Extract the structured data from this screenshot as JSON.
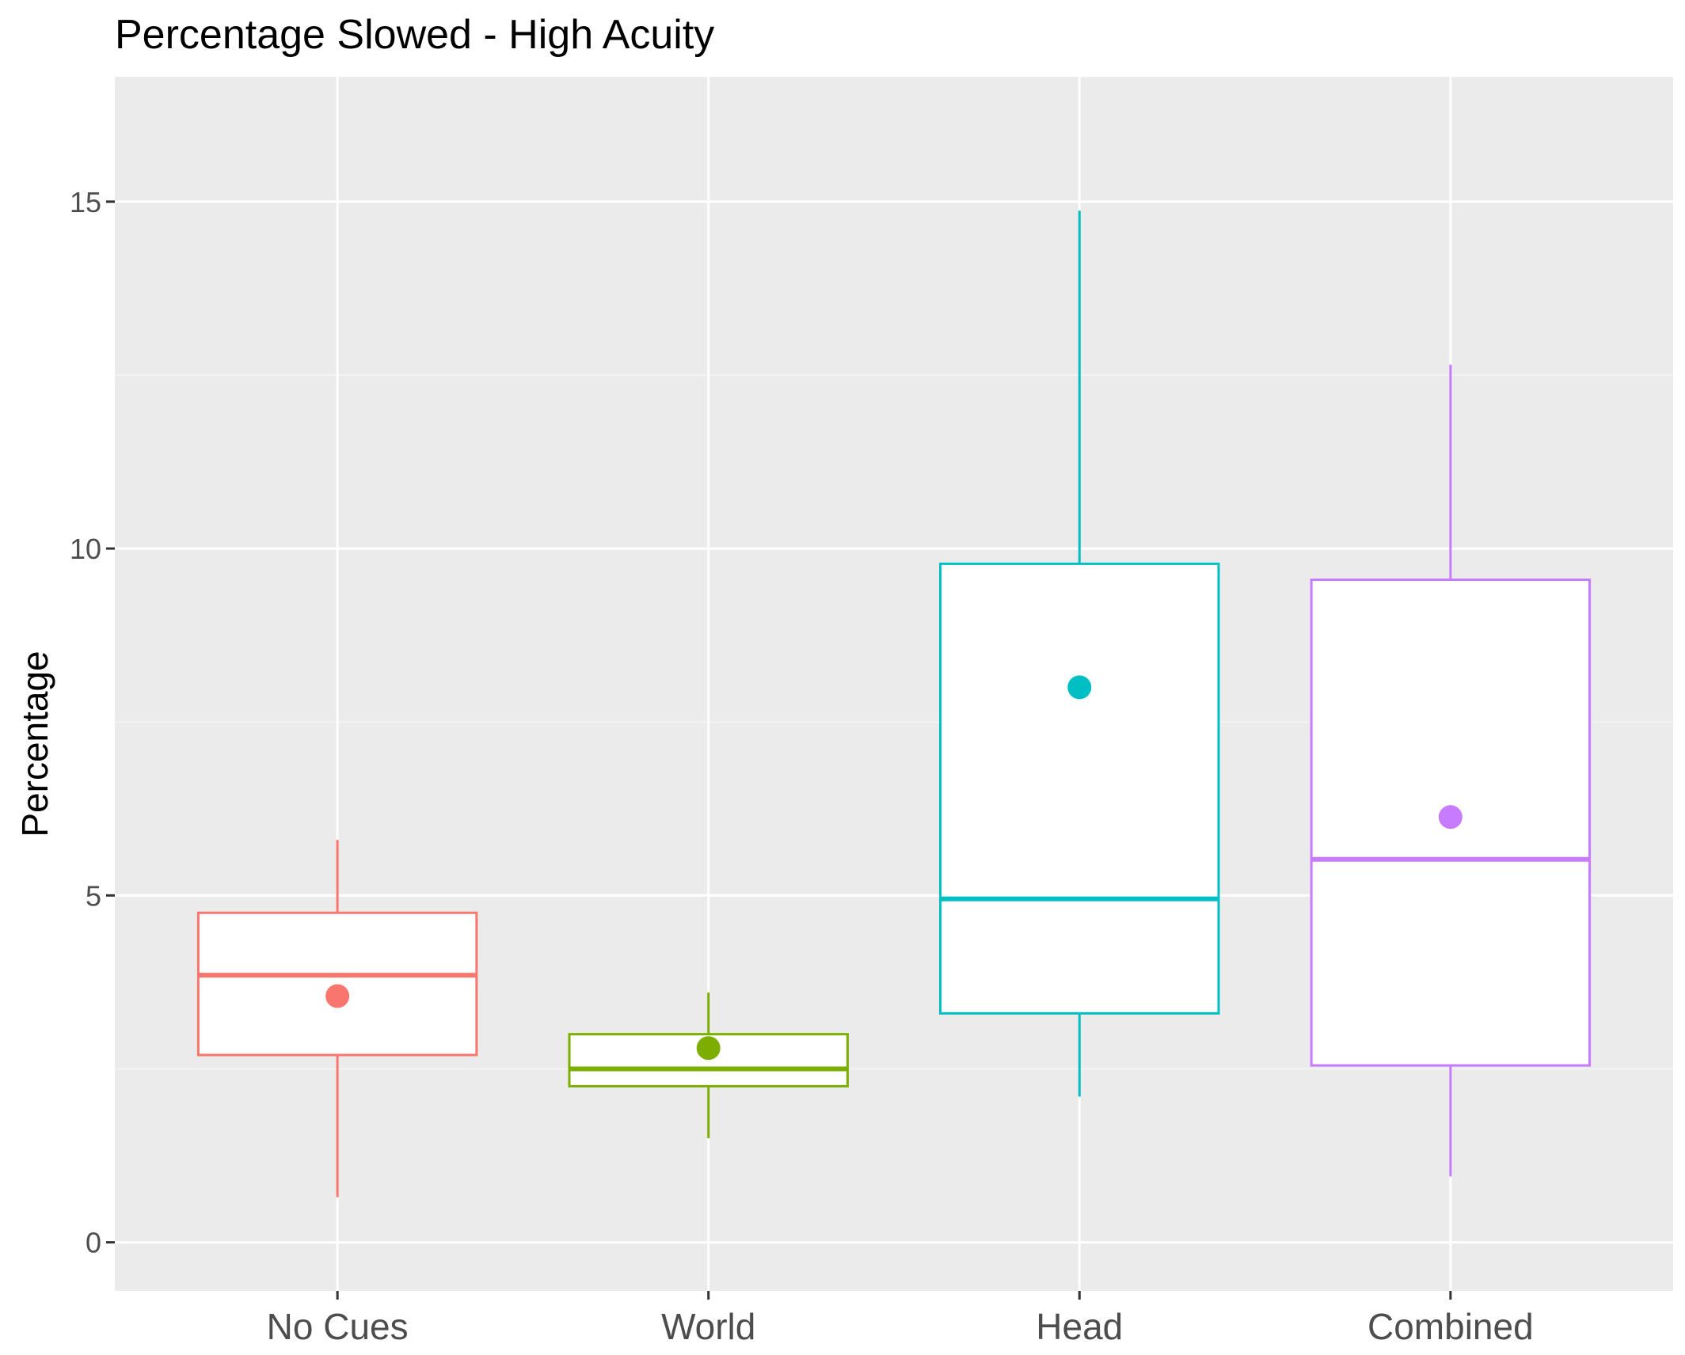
{
  "chart_data": {
    "type": "boxplot",
    "title": "Percentage Slowed - High Acuity",
    "xlabel": "",
    "ylabel": "Percentage",
    "categories": [
      "No Cues",
      "World",
      "Head",
      "Combined"
    ],
    "ylim": [
      -0.7,
      16.8
    ],
    "yticks": [
      0,
      5,
      10,
      15
    ],
    "grid": true,
    "legend": "none",
    "boxes": [
      {
        "category": "No Cues",
        "whisker_low": 0.65,
        "q1": 2.7,
        "median": 3.85,
        "q3": 4.75,
        "whisker_high": 5.8,
        "mean": 3.55,
        "color": "#F8766D"
      },
      {
        "category": "World",
        "whisker_low": 1.5,
        "q1": 2.25,
        "median": 2.5,
        "q3": 3.0,
        "whisker_high": 3.6,
        "mean": 2.8,
        "color": "#7CAE00"
      },
      {
        "category": "Head",
        "whisker_low": 2.1,
        "q1": 3.3,
        "median": 4.95,
        "q3": 9.78,
        "whisker_high": 14.87,
        "mean": 8.0,
        "color": "#00BFC4"
      },
      {
        "category": "Combined",
        "whisker_low": 0.95,
        "q1": 2.55,
        "median": 5.52,
        "q3": 9.55,
        "whisker_high": 12.65,
        "mean": 6.13,
        "color": "#C77CFF"
      }
    ],
    "colors": {
      "panel_background": "#EBEBEB",
      "grid_major": "#FFFFFF",
      "grid_minor": "#F5F5F5",
      "tick_text": "#4D4D4D",
      "axis_tick": "#333333"
    }
  }
}
